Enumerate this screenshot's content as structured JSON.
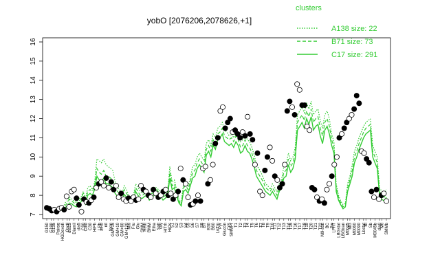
{
  "chart_data": {
    "type": "line",
    "title": "yobO [2076206,2078626,+1]",
    "xlabel": "",
    "ylabel": "",
    "ylim": [
      7,
      16
    ],
    "yticks": [
      7,
      8,
      9,
      10,
      11,
      12,
      13,
      14,
      15,
      16
    ],
    "grid": false,
    "legend": {
      "title": "clusters",
      "placement": "top-right",
      "entries": [
        {
          "label": "A138 size: 22",
          "style": "dotted"
        },
        {
          "label": "B71 size: 73",
          "style": "dashed"
        },
        {
          "label": "C17 size: 291",
          "style": "solid"
        }
      ]
    },
    "series_color": "#33cc33",
    "point_fill_dark": "#000000",
    "point_fill_light": "#ffffff",
    "x_count": 150,
    "tick_labels": [
      "G150",
      "G180",
      "G135",
      "Pairaq",
      "HGDexoh",
      "Oxctl",
      "dia15",
      "Diamil",
      "dia5",
      "C90",
      "Cold",
      "C30",
      "HiPh",
      "LPh",
      "aero",
      "nit",
      "ferm",
      "GM+15",
      "GM+10",
      "GM+60",
      "GM+120",
      "Mal",
      "Fru",
      "Glu",
      "SMM",
      "Heat",
      "BMM",
      "Etha",
      "Salt",
      "Gly",
      "HiTm",
      "HiOs",
      "S1",
      "S2",
      "S3",
      "S4",
      "S5",
      "S6",
      "S7",
      "S8",
      "BT",
      "B30",
      "B60",
      "LoTm",
      "Pyr",
      "Glucon",
      "CrS",
      "SMMPr",
      "T1",
      "T2",
      "T3",
      "T4",
      "T5",
      "T6",
      "T7",
      "T8",
      "T9",
      "T10",
      "T11",
      "T12",
      "T13",
      "T14",
      "T15",
      "T16",
      "T17",
      "T18",
      "T19",
      "T20",
      "T21",
      "T22",
      "M9-stat",
      "BC",
      "Sw",
      "LPhT",
      "LBGstat",
      "LBGtran",
      "M0045",
      "MG",
      "M0060",
      "M0090",
      "Lbstat",
      "BI",
      "Sb",
      "M0045b",
      "dia0",
      "Mtl",
      "SMMb"
    ],
    "series": [
      {
        "name": "A138 size: 22",
        "style": "dotted",
        "values": [
          7.4,
          7.35,
          7.3,
          7.25,
          7.2,
          7.3,
          7.35,
          7.3,
          7.6,
          7.7,
          7.9,
          7.8,
          7.7,
          7.6,
          7.8,
          7.9,
          8.2,
          7.8,
          8.4,
          8.5,
          8.3,
          8.7,
          9.9,
          9.8,
          9.7,
          9.9,
          9.6,
          9.5,
          9.4,
          9.3,
          8.7,
          8.4,
          8.3,
          8.1,
          8.5,
          8.3,
          8.0,
          7.9,
          8.0,
          8.6,
          8.4,
          8.2,
          8.1,
          8.2,
          8.3,
          8.0,
          8.1,
          8.3,
          8.4,
          8.3,
          8.2,
          8.0,
          8.1,
          8.2,
          9.5,
          8.7,
          8.8,
          8.3,
          7.8,
          7.6,
          8.6,
          8.7,
          8.5,
          8.9,
          9.5,
          9.6,
          10.0,
          10.2,
          10.0,
          9.8,
          10.7,
          10.9,
          10.6,
          11.2,
          11.0,
          11.5,
          11.6,
          11.8,
          11.4,
          11.3,
          11.1,
          11.2,
          11.0,
          11.4,
          11.2,
          10.8,
          10.9,
          11.2,
          10.9,
          10.8,
          10.5,
          10.1,
          9.6,
          9.4,
          9.2,
          8.9,
          8.6,
          8.5,
          8.3,
          8.6,
          8.4,
          8.2,
          8.6,
          8.8,
          9.5,
          9.6,
          10.2,
          9.8,
          10.0,
          10.5,
          12.2,
          12.4,
          12.6,
          12.3,
          12.8,
          12.5,
          12.9,
          12.2,
          12.4,
          12.5,
          11.9,
          11.5,
          12.2,
          12.4,
          12.0,
          11.2,
          10.8,
          8.6,
          8.0,
          7.7,
          7.5,
          7.6,
          8.6,
          9.0,
          9.6,
          10.3,
          10.6,
          11.0,
          11.3,
          11.6,
          11.8,
          11.9,
          12.0,
          10.6,
          10.3,
          10.0,
          8.4,
          8.2,
          8.1,
          8.3
        ]
      },
      {
        "name": "B71 size: 73",
        "style": "dashed",
        "values": [
          7.4,
          7.35,
          7.3,
          7.25,
          7.2,
          7.25,
          7.3,
          7.25,
          7.45,
          7.6,
          7.8,
          7.7,
          7.6,
          7.5,
          7.7,
          7.8,
          8.1,
          7.7,
          8.2,
          8.3,
          8.2,
          8.5,
          9.4,
          9.2,
          9.1,
          9.3,
          9.0,
          9.0,
          8.9,
          8.8,
          8.4,
          8.2,
          8.1,
          8.0,
          8.3,
          8.1,
          7.9,
          7.8,
          7.9,
          8.4,
          8.2,
          8.0,
          8.0,
          8.1,
          8.2,
          7.9,
          8.0,
          8.2,
          8.3,
          8.2,
          8.1,
          7.9,
          8.0,
          8.1,
          9.2,
          8.5,
          8.6,
          8.1,
          7.7,
          7.5,
          8.4,
          8.5,
          8.3,
          8.7,
          9.2,
          9.3,
          9.7,
          9.9,
          9.7,
          9.5,
          10.4,
          10.6,
          10.3,
          10.9,
          10.7,
          11.2,
          11.3,
          11.5,
          11.1,
          11.0,
          10.9,
          11.0,
          10.8,
          11.1,
          10.9,
          10.5,
          10.6,
          10.9,
          10.6,
          10.5,
          10.2,
          9.8,
          9.3,
          9.1,
          8.9,
          8.7,
          8.4,
          8.3,
          8.2,
          8.4,
          8.2,
          8.0,
          8.4,
          8.6,
          9.2,
          9.3,
          9.9,
          9.5,
          9.7,
          10.2,
          11.8,
          12.0,
          12.2,
          11.9,
          12.4,
          12.1,
          12.5,
          11.8,
          12.0,
          12.1,
          11.5,
          11.1,
          11.8,
          12.0,
          11.6,
          10.9,
          10.5,
          8.4,
          7.9,
          7.6,
          7.4,
          7.5,
          8.4,
          8.8,
          9.3,
          10.0,
          10.3,
          10.7,
          11.0,
          11.3,
          11.5,
          11.6,
          11.7,
          10.3,
          10.0,
          9.7,
          8.2,
          8.0,
          7.9,
          8.1
        ]
      },
      {
        "name": "C17 size: 291",
        "style": "solid",
        "values": [
          7.35,
          7.3,
          7.25,
          7.2,
          7.15,
          7.2,
          7.25,
          7.2,
          7.35,
          7.45,
          7.6,
          7.55,
          7.45,
          7.4,
          7.55,
          7.65,
          7.9,
          7.55,
          8.0,
          8.1,
          8.0,
          8.3,
          9.0,
          8.8,
          8.7,
          8.9,
          8.6,
          8.6,
          8.5,
          8.4,
          8.1,
          7.95,
          7.85,
          7.8,
          8.05,
          7.9,
          7.75,
          7.7,
          7.75,
          8.2,
          8.0,
          7.85,
          7.85,
          7.95,
          8.0,
          7.75,
          7.85,
          8.0,
          8.1,
          8.0,
          7.95,
          7.75,
          7.85,
          7.95,
          8.9,
          8.3,
          8.4,
          7.95,
          7.6,
          7.45,
          8.2,
          8.3,
          8.1,
          8.5,
          8.9,
          9.0,
          9.4,
          9.6,
          9.4,
          9.2,
          10.1,
          10.3,
          10.0,
          10.6,
          10.4,
          10.9,
          11.0,
          11.2,
          10.8,
          10.7,
          10.6,
          10.7,
          10.5,
          10.8,
          10.6,
          10.2,
          10.3,
          10.6,
          10.3,
          10.2,
          9.9,
          9.5,
          9.0,
          8.8,
          8.6,
          8.4,
          8.2,
          8.1,
          8.0,
          8.2,
          8.0,
          7.8,
          8.2,
          8.4,
          8.9,
          9.0,
          9.6,
          9.2,
          9.4,
          9.9,
          11.4,
          11.6,
          11.8,
          11.5,
          12.0,
          11.7,
          12.1,
          11.4,
          11.6,
          11.7,
          11.1,
          10.7,
          11.4,
          11.6,
          11.2,
          10.6,
          10.2,
          8.2,
          7.75,
          7.5,
          7.3,
          7.4,
          8.2,
          8.6,
          9.0,
          9.7,
          10.0,
          10.4,
          10.7,
          11.0,
          11.2,
          11.3,
          11.4,
          10.0,
          9.7,
          9.4,
          8.0,
          7.8,
          7.7,
          7.9
        ]
      }
    ],
    "points": [
      {
        "x": 0,
        "y": 7.35,
        "filled": true
      },
      {
        "x": 1,
        "y": 7.3,
        "filled": true
      },
      {
        "x": 2,
        "y": 7.2,
        "filled": true
      },
      {
        "x": 3,
        "y": 7.25,
        "filled": false
      },
      {
        "x": 4,
        "y": 7.15,
        "filled": true
      },
      {
        "x": 5,
        "y": 7.3,
        "filled": false
      },
      {
        "x": 6,
        "y": 7.35,
        "filled": false
      },
      {
        "x": 7,
        "y": 7.25,
        "filled": true
      },
      {
        "x": 8,
        "y": 7.95,
        "filled": false
      },
      {
        "x": 9,
        "y": 7.4,
        "filled": false
      },
      {
        "x": 10,
        "y": 8.2,
        "filled": false
      },
      {
        "x": 11,
        "y": 8.3,
        "filled": false
      },
      {
        "x": 12,
        "y": 7.85,
        "filled": true
      },
      {
        "x": 13,
        "y": 7.5,
        "filled": true
      },
      {
        "x": 14,
        "y": 7.15,
        "filled": false
      },
      {
        "x": 15,
        "y": 7.8,
        "filled": true
      },
      {
        "x": 16,
        "y": 7.65,
        "filled": false
      },
      {
        "x": 17,
        "y": 7.6,
        "filled": true
      },
      {
        "x": 18,
        "y": 7.75,
        "filled": false
      },
      {
        "x": 19,
        "y": 7.9,
        "filled": true
      },
      {
        "x": 20,
        "y": 8.4,
        "filled": false
      },
      {
        "x": 21,
        "y": 8.6,
        "filled": true
      },
      {
        "x": 22,
        "y": 8.7,
        "filled": false
      },
      {
        "x": 23,
        "y": 8.5,
        "filled": false
      },
      {
        "x": 24,
        "y": 8.9,
        "filled": true
      },
      {
        "x": 25,
        "y": 8.4,
        "filled": false
      },
      {
        "x": 26,
        "y": 8.7,
        "filled": true
      },
      {
        "x": 27,
        "y": 8.3,
        "filled": true
      },
      {
        "x": 28,
        "y": 8.5,
        "filled": false
      },
      {
        "x": 29,
        "y": 7.9,
        "filled": false
      },
      {
        "x": 30,
        "y": 8.1,
        "filled": true
      },
      {
        "x": 31,
        "y": 7.8,
        "filled": false
      },
      {
        "x": 32,
        "y": 7.7,
        "filled": false
      },
      {
        "x": 33,
        "y": 7.85,
        "filled": true
      },
      {
        "x": 34,
        "y": 7.7,
        "filled": false
      },
      {
        "x": 35,
        "y": 7.9,
        "filled": false
      },
      {
        "x": 36,
        "y": 7.75,
        "filled": true
      },
      {
        "x": 37,
        "y": 7.8,
        "filled": false
      },
      {
        "x": 38,
        "y": 8.5,
        "filled": false
      },
      {
        "x": 39,
        "y": 8.3,
        "filled": true
      },
      {
        "x": 40,
        "y": 8.2,
        "filled": false
      },
      {
        "x": 41,
        "y": 8.0,
        "filled": true
      },
      {
        "x": 42,
        "y": 7.9,
        "filled": false
      },
      {
        "x": 43,
        "y": 8.3,
        "filled": true
      },
      {
        "x": 44,
        "y": 8.1,
        "filled": false
      },
      {
        "x": 45,
        "y": 7.9,
        "filled": true
      },
      {
        "x": 46,
        "y": 8.0,
        "filled": false
      },
      {
        "x": 47,
        "y": 8.2,
        "filled": true
      },
      {
        "x": 48,
        "y": 8.3,
        "filled": false
      },
      {
        "x": 49,
        "y": 8.0,
        "filled": true
      },
      {
        "x": 50,
        "y": 8.1,
        "filled": false
      },
      {
        "x": 51,
        "y": 7.8,
        "filled": true
      },
      {
        "x": 52,
        "y": 8.0,
        "filled": false
      },
      {
        "x": 53,
        "y": 8.2,
        "filled": true
      },
      {
        "x": 54,
        "y": 9.4,
        "filled": false
      },
      {
        "x": 55,
        "y": 8.8,
        "filled": true
      },
      {
        "x": 56,
        "y": 8.6,
        "filled": false
      },
      {
        "x": 57,
        "y": 7.9,
        "filled": false
      },
      {
        "x": 58,
        "y": 7.5,
        "filled": true
      },
      {
        "x": 59,
        "y": 7.55,
        "filled": false
      },
      {
        "x": 60,
        "y": 7.7,
        "filled": true
      },
      {
        "x": 61,
        "y": 8.0,
        "filled": false
      },
      {
        "x": 62,
        "y": 7.7,
        "filled": true
      },
      {
        "x": 63,
        "y": 9.4,
        "filled": false
      },
      {
        "x": 64,
        "y": 9.5,
        "filled": false
      },
      {
        "x": 65,
        "y": 8.6,
        "filled": true
      },
      {
        "x": 66,
        "y": 8.8,
        "filled": false
      },
      {
        "x": 67,
        "y": 9.6,
        "filled": false
      },
      {
        "x": 68,
        "y": 10.7,
        "filled": true
      },
      {
        "x": 69,
        "y": 11.0,
        "filled": true
      },
      {
        "x": 70,
        "y": 12.4,
        "filled": false
      },
      {
        "x": 71,
        "y": 12.6,
        "filled": false
      },
      {
        "x": 72,
        "y": 11.5,
        "filled": true
      },
      {
        "x": 73,
        "y": 11.8,
        "filled": true
      },
      {
        "x": 74,
        "y": 12.0,
        "filled": true
      },
      {
        "x": 75,
        "y": 11.3,
        "filled": false
      },
      {
        "x": 76,
        "y": 11.4,
        "filled": true
      },
      {
        "x": 77,
        "y": 11.2,
        "filled": true
      },
      {
        "x": 78,
        "y": 11.0,
        "filled": true
      },
      {
        "x": 79,
        "y": 11.3,
        "filled": false
      },
      {
        "x": 80,
        "y": 11.1,
        "filled": true
      },
      {
        "x": 81,
        "y": 12.1,
        "filled": false
      },
      {
        "x": 82,
        "y": 11.2,
        "filled": true
      },
      {
        "x": 83,
        "y": 10.9,
        "filled": true
      },
      {
        "x": 84,
        "y": 9.6,
        "filled": false
      },
      {
        "x": 85,
        "y": 10.2,
        "filled": true
      },
      {
        "x": 86,
        "y": 8.2,
        "filled": false
      },
      {
        "x": 87,
        "y": 8.0,
        "filled": false
      },
      {
        "x": 88,
        "y": 9.3,
        "filled": true
      },
      {
        "x": 89,
        "y": 10.0,
        "filled": true
      },
      {
        "x": 90,
        "y": 10.5,
        "filled": false
      },
      {
        "x": 91,
        "y": 9.8,
        "filled": false
      },
      {
        "x": 92,
        "y": 9.0,
        "filled": true
      },
      {
        "x": 93,
        "y": 8.8,
        "filled": false
      },
      {
        "x": 94,
        "y": 8.4,
        "filled": true
      },
      {
        "x": 95,
        "y": 8.6,
        "filled": true
      },
      {
        "x": 96,
        "y": 9.6,
        "filled": false
      },
      {
        "x": 97,
        "y": 12.4,
        "filled": true
      },
      {
        "x": 98,
        "y": 12.9,
        "filled": true
      },
      {
        "x": 99,
        "y": 12.6,
        "filled": false
      },
      {
        "x": 100,
        "y": 12.2,
        "filled": true
      },
      {
        "x": 101,
        "y": 13.8,
        "filled": false
      },
      {
        "x": 102,
        "y": 13.5,
        "filled": false
      },
      {
        "x": 103,
        "y": 12.7,
        "filled": true
      },
      {
        "x": 104,
        "y": 12.7,
        "filled": true
      },
      {
        "x": 105,
        "y": 11.6,
        "filled": false
      },
      {
        "x": 106,
        "y": 11.4,
        "filled": false
      },
      {
        "x": 107,
        "y": 8.4,
        "filled": true
      },
      {
        "x": 108,
        "y": 8.3,
        "filled": true
      },
      {
        "x": 109,
        "y": 7.9,
        "filled": false
      },
      {
        "x": 110,
        "y": 7.7,
        "filled": true
      },
      {
        "x": 111,
        "y": 7.8,
        "filled": false
      },
      {
        "x": 112,
        "y": 7.6,
        "filled": true
      },
      {
        "x": 113,
        "y": 8.3,
        "filled": false
      },
      {
        "x": 114,
        "y": 8.6,
        "filled": false
      },
      {
        "x": 115,
        "y": 9.0,
        "filled": true
      },
      {
        "x": 116,
        "y": 9.6,
        "filled": false
      },
      {
        "x": 117,
        "y": 10.0,
        "filled": false
      },
      {
        "x": 118,
        "y": 11.0,
        "filled": true
      },
      {
        "x": 119,
        "y": 11.2,
        "filled": false
      },
      {
        "x": 120,
        "y": 11.5,
        "filled": true
      },
      {
        "x": 121,
        "y": 11.8,
        "filled": true
      },
      {
        "x": 122,
        "y": 12.0,
        "filled": false
      },
      {
        "x": 123,
        "y": 12.2,
        "filled": false
      },
      {
        "x": 124,
        "y": 12.5,
        "filled": true
      },
      {
        "x": 125,
        "y": 13.2,
        "filled": true
      },
      {
        "x": 126,
        "y": 12.8,
        "filled": true
      },
      {
        "x": 127,
        "y": 10.3,
        "filled": false
      },
      {
        "x": 128,
        "y": 10.2,
        "filled": false
      },
      {
        "x": 129,
        "y": 9.9,
        "filled": true
      },
      {
        "x": 130,
        "y": 9.7,
        "filled": true
      },
      {
        "x": 131,
        "y": 8.2,
        "filled": true
      },
      {
        "x": 132,
        "y": 7.9,
        "filled": false
      },
      {
        "x": 133,
        "y": 8.3,
        "filled": true
      },
      {
        "x": 134,
        "y": 7.8,
        "filled": false
      },
      {
        "x": 135,
        "y": 8.0,
        "filled": true
      },
      {
        "x": 136,
        "y": 8.1,
        "filled": false
      },
      {
        "x": 137,
        "y": 7.7,
        "filled": false
      }
    ]
  }
}
